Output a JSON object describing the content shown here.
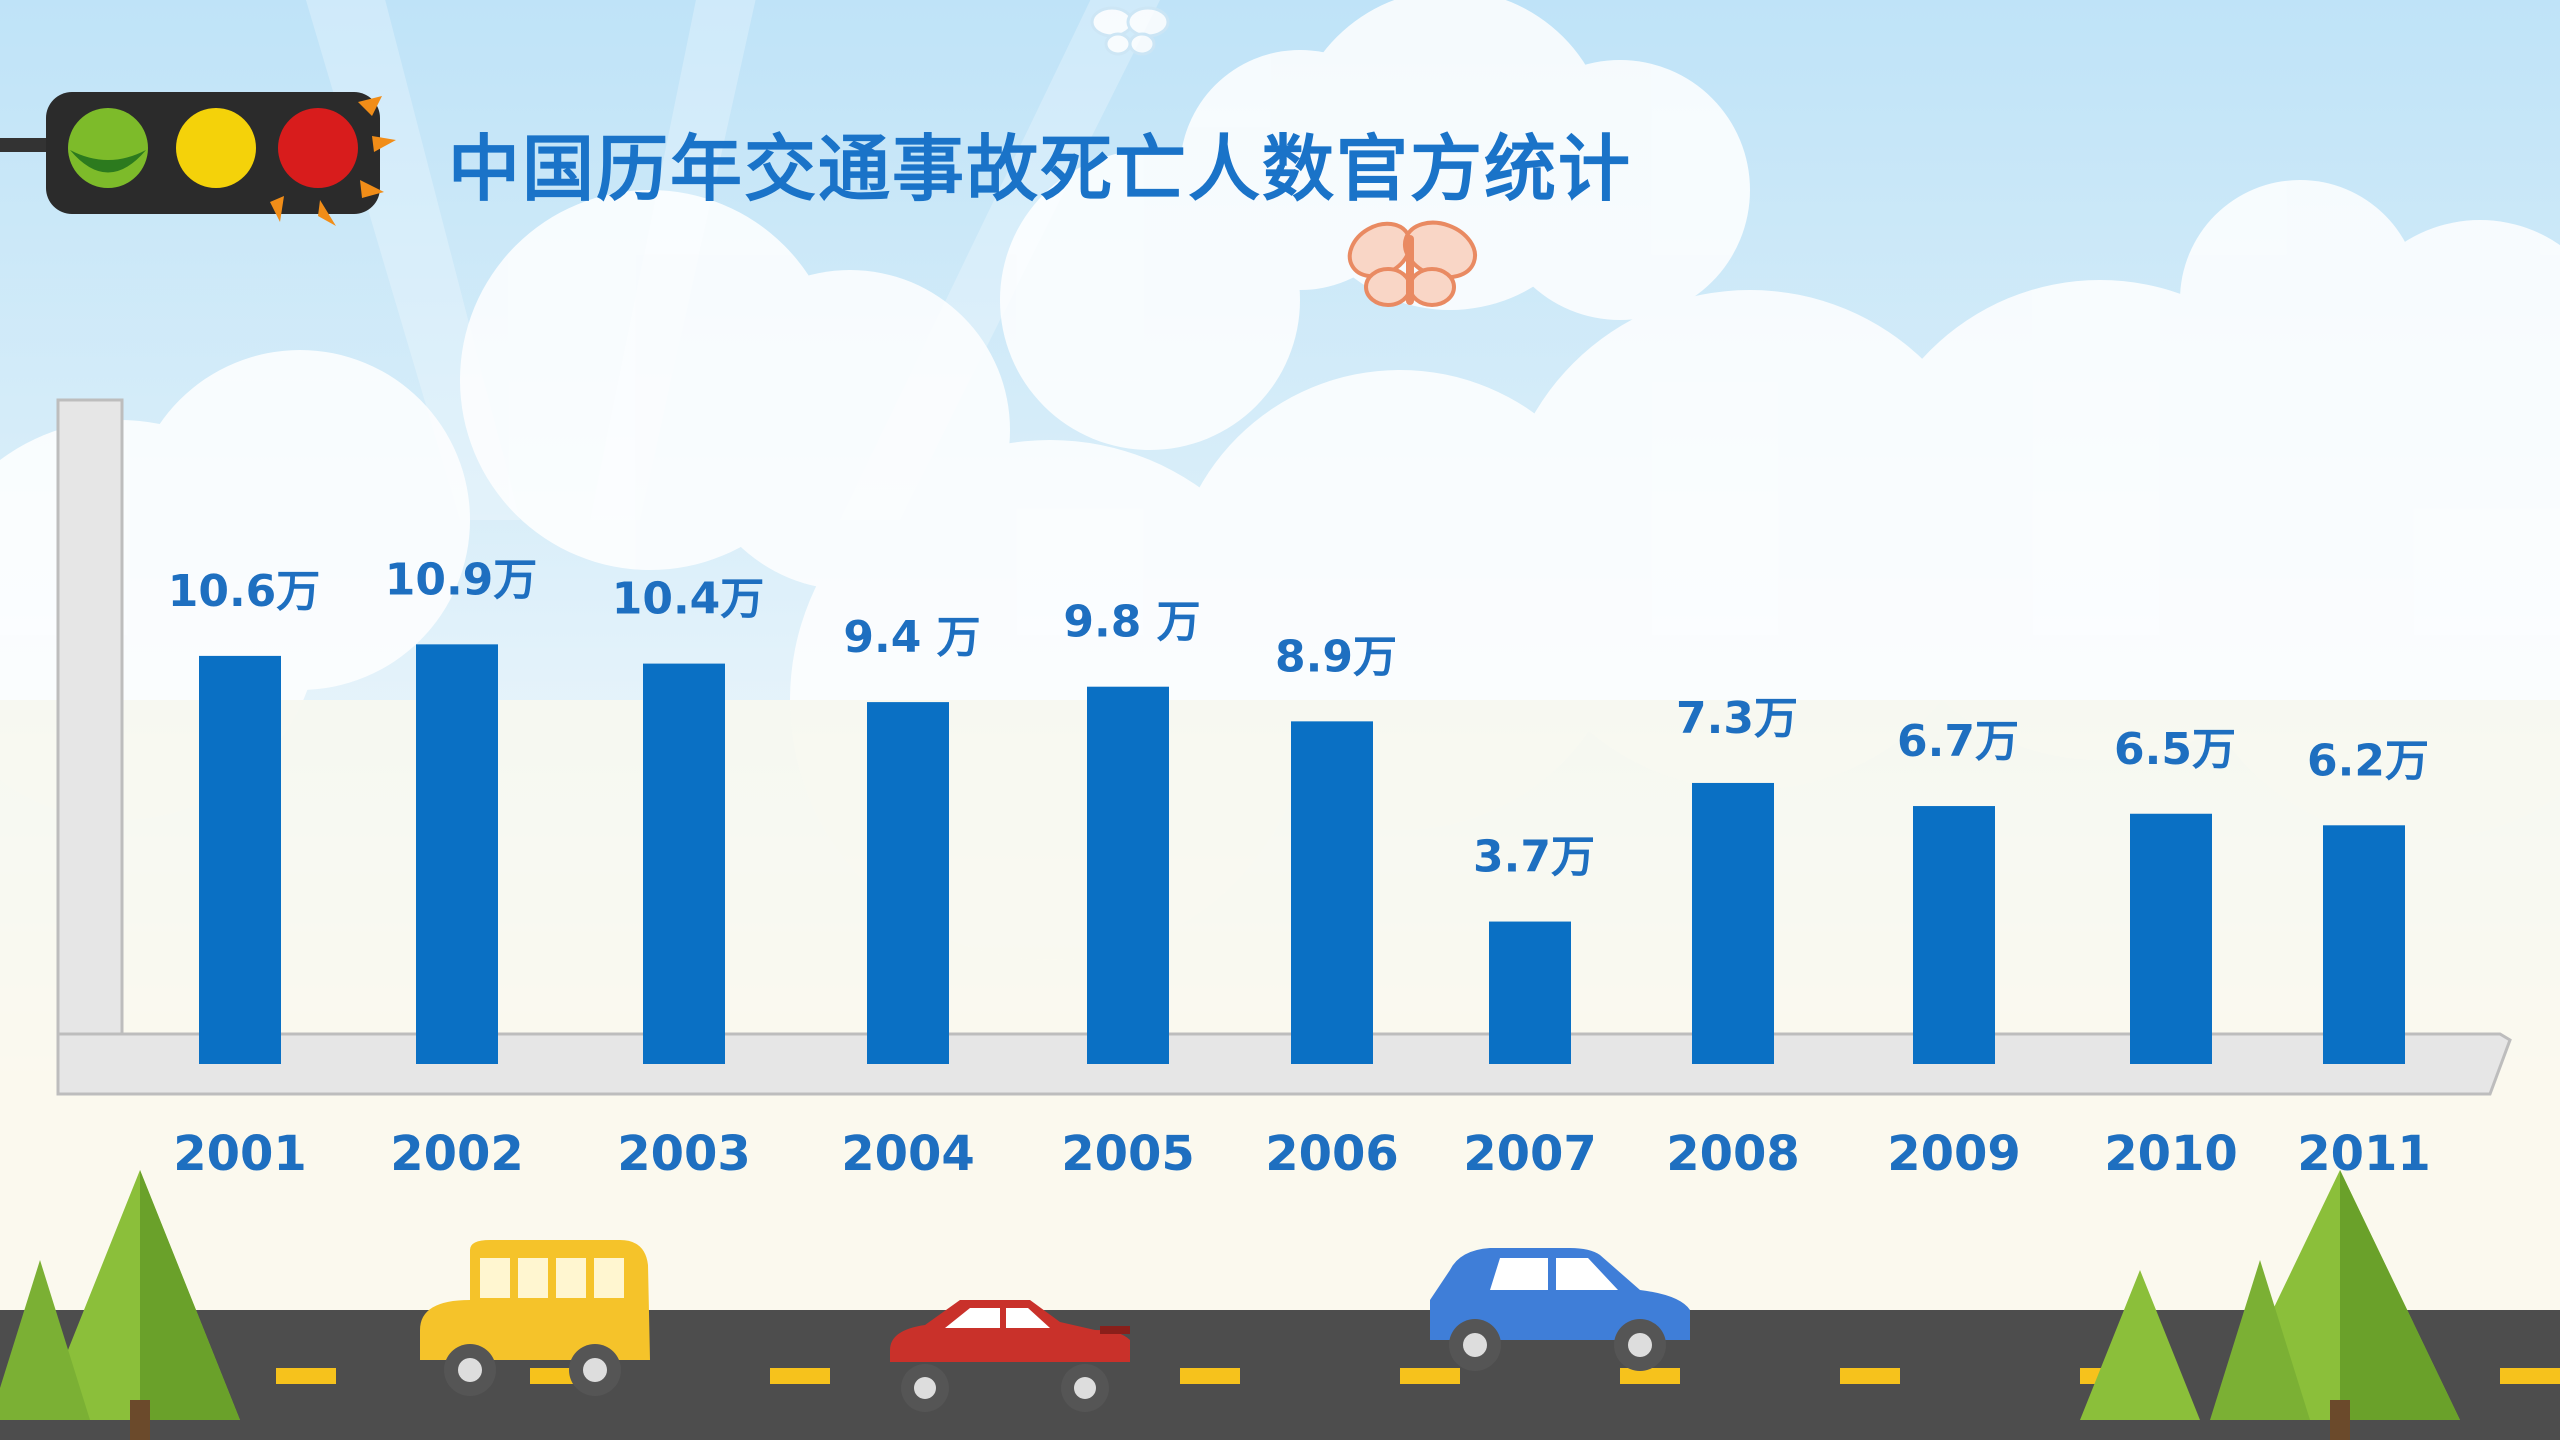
{
  "title": "中国历年交通事故死亡人数官方统计",
  "colors": {
    "bar": "#0a70c4",
    "label": "#1e6fc0",
    "title": "#1a73c8",
    "road": "#4d4d4d",
    "lane": "#f6c21c"
  },
  "chart_data": {
    "type": "bar",
    "title": "中国历年交通事故死亡人数官方统计",
    "categories": [
      "2001",
      "2002",
      "2003",
      "2004",
      "2005",
      "2006",
      "2007",
      "2008",
      "2009",
      "2010",
      "2011"
    ],
    "values": [
      10.6,
      10.9,
      10.4,
      9.4,
      9.8,
      8.9,
      3.7,
      7.3,
      6.7,
      6.5,
      6.2
    ],
    "value_labels": [
      "10.6万",
      "10.9万",
      "10.4万",
      "9.4 万",
      "9.8 万",
      "8.9万",
      "3.7万",
      "7.3万",
      "6.7万",
      "6.5万",
      "6.2万"
    ],
    "xlabel": "",
    "ylabel": "",
    "legend": "none",
    "grid": false
  }
}
